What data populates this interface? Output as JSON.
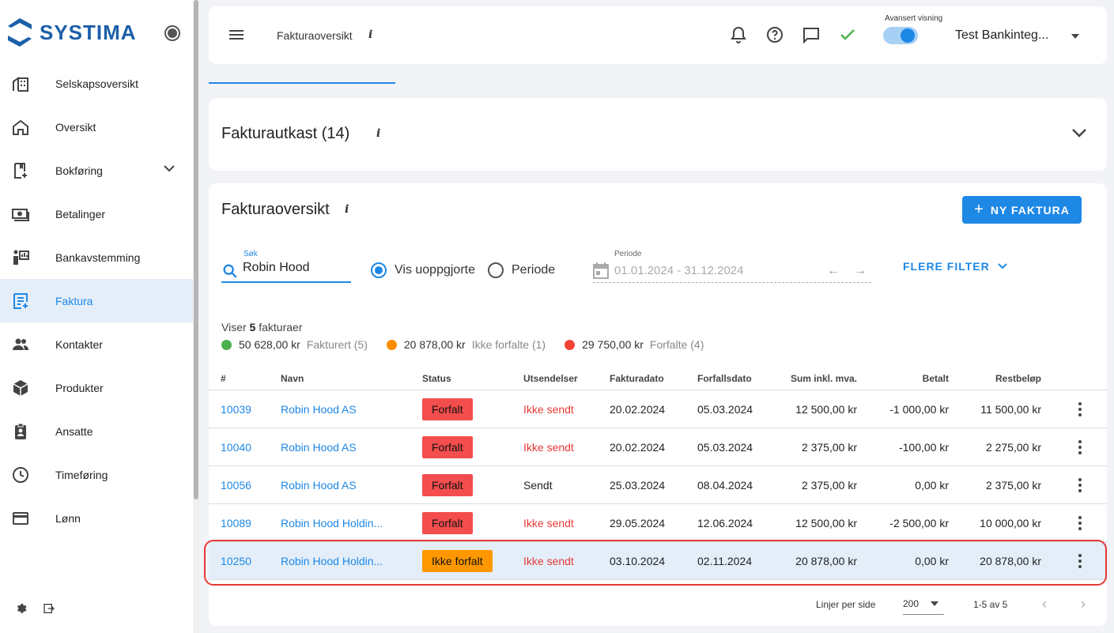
{
  "app": {
    "logo_text": "SYSTIMA"
  },
  "sidebar": {
    "items": [
      {
        "label": "Selskapsoversikt",
        "icon": "building-icon"
      },
      {
        "label": "Oversikt",
        "icon": "home-icon"
      },
      {
        "label": "Bokføring",
        "icon": "bookkeeping-icon",
        "expandable": true
      },
      {
        "label": "Betalinger",
        "icon": "payments-icon"
      },
      {
        "label": "Bankavstemming",
        "icon": "bank-reconciliation-icon"
      },
      {
        "label": "Faktura",
        "icon": "invoice-icon",
        "active": true
      },
      {
        "label": "Kontakter",
        "icon": "contacts-icon"
      },
      {
        "label": "Produkter",
        "icon": "products-icon"
      },
      {
        "label": "Ansatte",
        "icon": "employees-icon"
      },
      {
        "label": "Timeføring",
        "icon": "clock-icon"
      },
      {
        "label": "Lønn",
        "icon": "card-icon"
      }
    ]
  },
  "topbar": {
    "page_title": "Fakturaoversikt",
    "info": "i",
    "advanced_view_label": "Avansert visning",
    "advanced_view_on": true,
    "company": "Test Bankinteg..."
  },
  "draft": {
    "title": "Fakturautkast (14)",
    "info": "i"
  },
  "overview": {
    "title": "Fakturaoversikt",
    "info": "i",
    "new_button": "NY FAKTURA",
    "search": {
      "label": "Søk",
      "value": "Robin Hood"
    },
    "radio_unsettled": "Vis uoppgjorte",
    "radio_period": "Periode",
    "period": {
      "label": "Periode",
      "value": "01.01.2024 - 31.12.2024"
    },
    "more_filters": "FLERE FILTER",
    "showing_prefix": "Viser",
    "showing_count": "5",
    "showing_suffix": "fakturaer",
    "legend": [
      {
        "amount": "50 628,00 kr",
        "label": "Fakturert (5)",
        "color": "#4caf50"
      },
      {
        "amount": "20 878,00 kr",
        "label": "Ikke forfalte (1)",
        "color": "#fb8c00"
      },
      {
        "amount": "29 750,00 kr",
        "label": "Forfalte (4)",
        "color": "#f44336"
      }
    ]
  },
  "table": {
    "headers": {
      "num": "#",
      "name": "Navn",
      "status": "Status",
      "send": "Utsendelser",
      "fdate": "Fakturadato",
      "ddate": "Forfallsdato",
      "sum": "Sum inkl. mva.",
      "paid": "Betalt",
      "rest": "Restbeløp"
    },
    "rows": [
      {
        "num": "10039",
        "name": "Robin Hood AS",
        "status": "Forfalt",
        "status_color": "#f44d4d",
        "send": "Ikke sendt",
        "send_red": true,
        "fdate": "20.02.2024",
        "ddate": "05.03.2024",
        "sum": "12 500,00 kr",
        "paid": "-1 000,00 kr",
        "rest": "11 500,00 kr"
      },
      {
        "num": "10040",
        "name": "Robin Hood AS",
        "status": "Forfalt",
        "status_color": "#f44d4d",
        "send": "Ikke sendt",
        "send_red": true,
        "fdate": "20.02.2024",
        "ddate": "05.03.2024",
        "sum": "2 375,00 kr",
        "paid": "-100,00 kr",
        "rest": "2 275,00 kr"
      },
      {
        "num": "10056",
        "name": "Robin Hood AS",
        "status": "Forfalt",
        "status_color": "#f44d4d",
        "send": "Sendt",
        "send_red": false,
        "fdate": "25.03.2024",
        "ddate": "08.04.2024",
        "sum": "2 375,00 kr",
        "paid": "0,00 kr",
        "rest": "2 375,00 kr"
      },
      {
        "num": "10089",
        "name": "Robin Hood Holdin...",
        "status": "Forfalt",
        "status_color": "#f44d4d",
        "send": "Ikke sendt",
        "send_red": true,
        "fdate": "29.05.2024",
        "ddate": "12.06.2024",
        "sum": "12 500,00 kr",
        "paid": "-2 500,00 kr",
        "rest": "10 000,00 kr"
      },
      {
        "num": "10250",
        "name": "Robin Hood Holdin...",
        "status": "Ikke forfalt",
        "status_color": "#ff9800",
        "send": "Ikke sendt",
        "send_red": true,
        "fdate": "03.10.2024",
        "ddate": "02.11.2024",
        "sum": "20 878,00 kr",
        "paid": "0,00 kr",
        "rest": "20 878,00 kr",
        "selected": true
      }
    ]
  },
  "pager": {
    "rows_per_page_label": "Linjer per side",
    "rows_per_page": "200",
    "range": "1-5 av 5"
  }
}
